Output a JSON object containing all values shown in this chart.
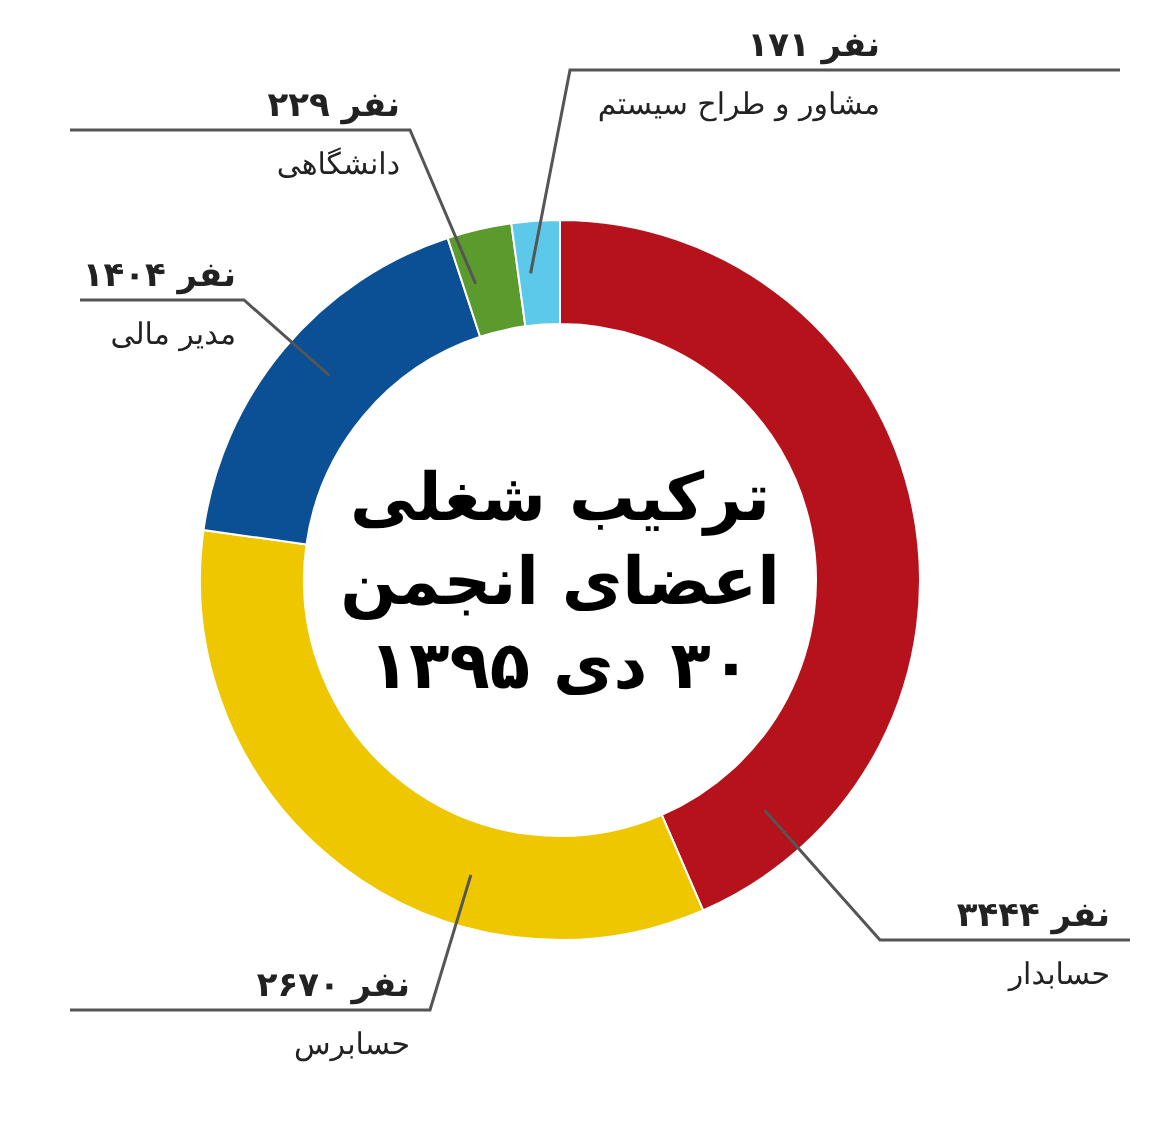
{
  "chart_data": {
    "type": "donut",
    "title": "ترکیب شغلی\nاعضای انجمن\n۳۰ دی ۱۳۹۵",
    "categories": [
      "حسابدار",
      "حسابرس",
      "مدیر مالی",
      "دانشگاهی",
      "مشاور و طراح سیستم"
    ],
    "values": [
      3444,
      2670,
      1404,
      229,
      171
    ],
    "colors": [
      "#b5121b",
      "#efc700",
      "#0b4f94",
      "#5b9a2c",
      "#5cc9ea"
    ],
    "value_labels": [
      "۳۴۴۴ نفر",
      "۲۶۷۰ نفر",
      "۱۴۰۴ نفر",
      "۲۲۹ نفر",
      "۱۷۱ نفر"
    ]
  }
}
